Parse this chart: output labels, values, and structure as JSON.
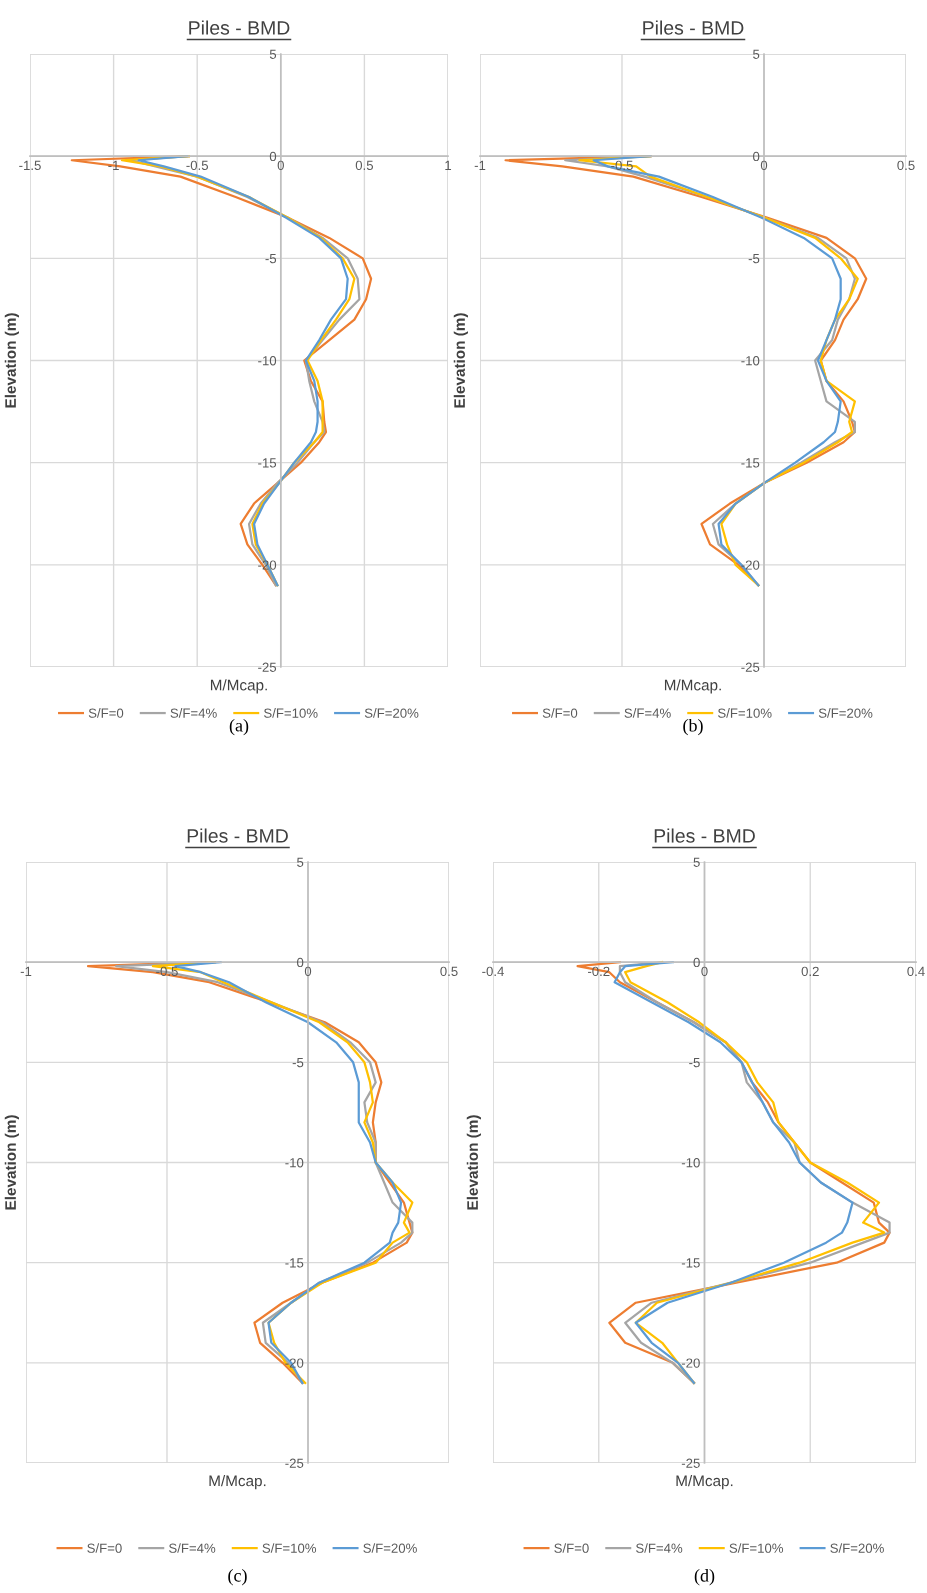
{
  "chart_data": [
    {
      "type": "line",
      "title": "Piles - BMD",
      "xlabel": "M/Mcap.",
      "ylabel": "Elevation (m)",
      "annotations": [
        "(a)"
      ],
      "xlim": [
        -1.5,
        1
      ],
      "xticks": [
        -1.5,
        -1,
        -0.5,
        0,
        0.5,
        1
      ],
      "ylim": [
        -25,
        5
      ],
      "yticks": [
        -25,
        -20,
        -15,
        -10,
        -5,
        0,
        5
      ],
      "grid": true,
      "legend": "bottom",
      "series": [
        {
          "name": "S/F=0",
          "color": "#ed7d31",
          "x": [
            -0.55,
            -1.25,
            -0.96,
            -0.6,
            -0.27,
            0.04,
            0.29,
            0.49,
            0.54,
            0.51,
            0.44,
            0.29,
            0.14,
            0.18,
            0.25,
            0.26,
            0.27,
            0.23,
            0.12,
            -0.02,
            -0.16,
            -0.24,
            -0.2,
            -0.11,
            -0.03
          ],
          "values": [
            0,
            -0.2,
            -0.5,
            -1,
            -2,
            -3,
            -4,
            -5,
            -6,
            -7,
            -8,
            -9,
            -10,
            -11,
            -12,
            -13,
            -13.5,
            -14,
            -15,
            -16,
            -17,
            -18,
            -19,
            -20,
            -21
          ]
        },
        {
          "name": "S/F=4%",
          "color": "#a5a5a5",
          "x": [
            -0.55,
            -0.9,
            -0.75,
            -0.5,
            -0.2,
            0.04,
            0.25,
            0.4,
            0.46,
            0.47,
            0.35,
            0.25,
            0.15,
            0.17,
            0.2,
            0.25,
            0.26,
            0.2,
            0.1,
            -0.02,
            -0.12,
            -0.19,
            -0.17,
            -0.09,
            -0.03
          ],
          "values": [
            0,
            -0.2,
            -0.5,
            -1,
            -2,
            -3,
            -4,
            -5,
            -6,
            -7,
            -8,
            -9,
            -10,
            -11,
            -12,
            -13,
            -13.5,
            -14,
            -15,
            -16,
            -17,
            -18,
            -19,
            -20,
            -21
          ]
        },
        {
          "name": "S/F=10%",
          "color": "#ffc000",
          "x": [
            -0.55,
            -0.95,
            -0.72,
            -0.5,
            -0.19,
            0.04,
            0.24,
            0.37,
            0.44,
            0.41,
            0.33,
            0.24,
            0.16,
            0.22,
            0.25,
            0.25,
            0.25,
            0.2,
            0.08,
            -0.01,
            -0.11,
            -0.17,
            -0.15,
            -0.08,
            -0.02
          ],
          "values": [
            0,
            -0.2,
            -0.5,
            -1,
            -2,
            -3,
            -4,
            -5,
            -6,
            -7,
            -8,
            -9,
            -10,
            -11,
            -12,
            -13,
            -13.5,
            -14,
            -15,
            -16,
            -17,
            -18,
            -19,
            -20,
            -21
          ]
        },
        {
          "name": "S/F=20%",
          "color": "#5b9bd5",
          "x": [
            -0.56,
            -0.85,
            -0.7,
            -0.48,
            -0.19,
            0.03,
            0.23,
            0.36,
            0.4,
            0.39,
            0.3,
            0.23,
            0.15,
            0.2,
            0.22,
            0.22,
            0.21,
            0.18,
            0.08,
            -0.01,
            -0.1,
            -0.16,
            -0.14,
            -0.08,
            -0.02
          ],
          "values": [
            0,
            -0.2,
            -0.5,
            -1,
            -2,
            -3,
            -4,
            -5,
            -6,
            -7,
            -8,
            -9,
            -10,
            -11,
            -12,
            -13,
            -13.5,
            -14,
            -15,
            -16,
            -17,
            -18,
            -19,
            -20,
            -21
          ]
        }
      ]
    },
    {
      "type": "line",
      "title": "Piles - BMD",
      "xlabel": "M/Mcap.",
      "ylabel": "Elevation (m)",
      "annotations": [
        "(b)"
      ],
      "xlim": [
        -1,
        0.5
      ],
      "xticks": [
        -1,
        -0.5,
        0,
        0.5
      ],
      "ylim": [
        -25,
        5
      ],
      "yticks": [
        -25,
        -20,
        -15,
        -10,
        -5,
        0,
        5
      ],
      "grid": true,
      "legend": "bottom",
      "series": [
        {
          "name": "S/F=0",
          "color": "#ed7d31",
          "x": [
            -0.4,
            -0.91,
            -0.71,
            -0.46,
            -0.22,
            0.01,
            0.22,
            0.32,
            0.36,
            0.33,
            0.28,
            0.25,
            0.2,
            0.22,
            0.28,
            0.31,
            0.32,
            0.28,
            0.15,
            0,
            -0.12,
            -0.22,
            -0.19,
            -0.09,
            -0.02
          ],
          "values": [
            0,
            -0.2,
            -0.5,
            -1,
            -2,
            -3,
            -4,
            -5,
            -6,
            -7,
            -8,
            -9,
            -10,
            -11,
            -12,
            -13,
            -13.5,
            -14,
            -15,
            -16,
            -17,
            -18,
            -19,
            -20,
            -21
          ]
        },
        {
          "name": "S/F=4%",
          "color": "#a5a5a5",
          "x": [
            -0.4,
            -0.7,
            -0.55,
            -0.42,
            -0.2,
            0,
            0.19,
            0.29,
            0.32,
            0.3,
            0.26,
            0.24,
            0.18,
            0.2,
            0.22,
            0.32,
            0.32,
            0.25,
            0.13,
            0,
            -0.1,
            -0.18,
            -0.16,
            -0.08,
            -0.02
          ],
          "values": [
            0,
            -0.2,
            -0.5,
            -1,
            -2,
            -3,
            -4,
            -5,
            -6,
            -7,
            -8,
            -9,
            -10,
            -11,
            -12,
            -13,
            -13.5,
            -14,
            -15,
            -16,
            -17,
            -18,
            -19,
            -20,
            -21
          ]
        },
        {
          "name": "S/F=10%",
          "color": "#ffc000",
          "x": [
            -0.4,
            -0.65,
            -0.45,
            -0.4,
            -0.2,
            0,
            0.18,
            0.27,
            0.33,
            0.3,
            0.25,
            0.22,
            0.2,
            0.22,
            0.32,
            0.3,
            0.31,
            0.26,
            0.14,
            0,
            -0.1,
            -0.15,
            -0.13,
            -0.1,
            -0.02
          ],
          "values": [
            0,
            -0.2,
            -0.5,
            -1,
            -2,
            -3,
            -4,
            -5,
            -6,
            -7,
            -8,
            -9,
            -10,
            -11,
            -12,
            -13,
            -13.5,
            -14,
            -15,
            -16,
            -17,
            -18,
            -19,
            -20,
            -21
          ]
        },
        {
          "name": "S/F=20%",
          "color": "#5b9bd5",
          "x": [
            -0.4,
            -0.6,
            -0.55,
            -0.37,
            -0.18,
            -0.01,
            0.14,
            0.24,
            0.27,
            0.27,
            0.25,
            0.22,
            0.19,
            0.22,
            0.27,
            0.26,
            0.25,
            0.21,
            0.11,
            0,
            -0.1,
            -0.16,
            -0.15,
            -0.08,
            -0.02
          ],
          "values": [
            0,
            -0.2,
            -0.5,
            -1,
            -2,
            -3,
            -4,
            -5,
            -6,
            -7,
            -8,
            -9,
            -10,
            -11,
            -12,
            -13,
            -13.5,
            -14,
            -15,
            -16,
            -17,
            -18,
            -19,
            -20,
            -21
          ]
        }
      ]
    },
    {
      "type": "line",
      "title": "Piles - BMD",
      "xlabel": "M/Mcap.",
      "ylabel": "Elevation (m)",
      "annotations": [
        "(c)"
      ],
      "xlim": [
        -1,
        0.5
      ],
      "xticks": [
        -1,
        -0.5,
        0,
        0.5
      ],
      "ylim": [
        -25,
        5
      ],
      "yticks": [
        -25,
        -20,
        -15,
        -10,
        -5,
        0,
        5
      ],
      "grid": true,
      "legend": "bottom",
      "series": [
        {
          "name": "S/F=0",
          "color": "#ed7d31",
          "x": [
            -0.35,
            -0.78,
            -0.55,
            -0.35,
            -0.14,
            0.06,
            0.18,
            0.24,
            0.26,
            0.24,
            0.23,
            0.24,
            0.24,
            0.29,
            0.34,
            0.36,
            0.37,
            0.35,
            0.23,
            0.05,
            -0.09,
            -0.19,
            -0.17,
            -0.09,
            -0.02
          ],
          "values": [
            0,
            -0.2,
            -0.5,
            -1,
            -2,
            -3,
            -4,
            -5,
            -6,
            -7,
            -8,
            -9,
            -10,
            -11,
            -12,
            -13,
            -13.5,
            -14,
            -15,
            -16,
            -17,
            -18,
            -19,
            -20,
            -21
          ]
        },
        {
          "name": "S/F=4%",
          "color": "#a5a5a5",
          "x": [
            -0.33,
            -0.68,
            -0.5,
            -0.32,
            -0.13,
            0.05,
            0.15,
            0.22,
            0.24,
            0.2,
            0.21,
            0.24,
            0.24,
            0.27,
            0.3,
            0.37,
            0.37,
            0.33,
            0.21,
            0.04,
            -0.06,
            -0.16,
            -0.15,
            -0.07,
            -0.02
          ],
          "values": [
            0,
            -0.2,
            -0.5,
            -1,
            -2,
            -3,
            -4,
            -5,
            -6,
            -7,
            -8,
            -9,
            -10,
            -11,
            -12,
            -13,
            -13.5,
            -14,
            -15,
            -16,
            -17,
            -18,
            -19,
            -20,
            -21
          ]
        },
        {
          "name": "S/F=10%",
          "color": "#ffc000",
          "x": [
            -0.33,
            -0.55,
            -0.38,
            -0.3,
            -0.13,
            0.04,
            0.14,
            0.2,
            0.22,
            0.23,
            0.2,
            0.23,
            0.24,
            0.3,
            0.37,
            0.34,
            0.36,
            0.3,
            0.24,
            0.05,
            -0.06,
            -0.14,
            -0.12,
            -0.08,
            -0.01
          ],
          "values": [
            0,
            -0.2,
            -0.5,
            -1,
            -2,
            -3,
            -4,
            -5,
            -6,
            -7,
            -8,
            -9,
            -10,
            -11,
            -12,
            -13,
            -13.5,
            -14,
            -15,
            -16,
            -17,
            -18,
            -19,
            -20,
            -21
          ]
        },
        {
          "name": "S/F=20%",
          "color": "#5b9bd5",
          "x": [
            -0.31,
            -0.47,
            -0.38,
            -0.28,
            -0.15,
            0,
            0.1,
            0.16,
            0.18,
            0.18,
            0.18,
            0.22,
            0.24,
            0.3,
            0.33,
            0.32,
            0.3,
            0.29,
            0.2,
            0.04,
            -0.06,
            -0.14,
            -0.13,
            -0.06,
            -0.02
          ],
          "values": [
            0,
            -0.2,
            -0.5,
            -1,
            -2,
            -3,
            -4,
            -5,
            -6,
            -7,
            -8,
            -9,
            -10,
            -11,
            -12,
            -13,
            -13.5,
            -14,
            -15,
            -16,
            -17,
            -18,
            -19,
            -20,
            -21
          ]
        }
      ]
    },
    {
      "type": "line",
      "title": "Piles - BMD",
      "xlabel": "M/Mcap.",
      "ylabel": "Elevation (m)",
      "annotations": [
        "(d)"
      ],
      "xlim": [
        -0.4,
        0.4
      ],
      "xticks": [
        -0.4,
        -0.2,
        0,
        0.2,
        0.4
      ],
      "ylim": [
        -25,
        5
      ],
      "yticks": [
        -25,
        -20,
        -15,
        -10,
        -5,
        0,
        5
      ],
      "grid": true,
      "legend": "bottom",
      "series": [
        {
          "name": "S/F=0",
          "color": "#ed7d31",
          "x": [
            -0.16,
            -0.24,
            -0.18,
            -0.16,
            -0.09,
            -0.02,
            0.04,
            0.07,
            0.09,
            0.12,
            0.14,
            0.17,
            0.2,
            0.26,
            0.32,
            0.33,
            0.35,
            0.34,
            0.25,
            0.06,
            -0.13,
            -0.18,
            -0.15,
            -0.06,
            -0.02
          ],
          "values": [
            0,
            -0.2,
            -0.5,
            -1,
            -2,
            -3,
            -4,
            -5,
            -6,
            -7,
            -8,
            -9,
            -10,
            -11,
            -12,
            -13,
            -13.5,
            -14,
            -15,
            -16,
            -17,
            -18,
            -19,
            -20,
            -21
          ]
        },
        {
          "name": "S/F=4%",
          "color": "#a5a5a5",
          "x": [
            -0.08,
            -0.16,
            -0.16,
            -0.15,
            -0.09,
            -0.02,
            0.04,
            0.07,
            0.08,
            0.11,
            0.13,
            0.17,
            0.18,
            0.22,
            0.28,
            0.35,
            0.35,
            0.3,
            0.2,
            0.05,
            -0.1,
            -0.15,
            -0.12,
            -0.06,
            -0.02
          ],
          "values": [
            0,
            -0.2,
            -0.5,
            -1,
            -2,
            -3,
            -4,
            -5,
            -6,
            -7,
            -8,
            -9,
            -10,
            -11,
            -12,
            -13,
            -13.5,
            -14,
            -15,
            -16,
            -17,
            -18,
            -19,
            -20,
            -21
          ]
        },
        {
          "name": "S/F=10%",
          "color": "#ffc000",
          "x": [
            -0.08,
            -0.11,
            -0.15,
            -0.14,
            -0.07,
            -0.01,
            0.04,
            0.08,
            0.1,
            0.13,
            0.14,
            0.17,
            0.2,
            0.27,
            0.33,
            0.3,
            0.34,
            0.28,
            0.18,
            0.05,
            -0.09,
            -0.13,
            -0.08,
            -0.05,
            -0.02
          ],
          "values": [
            0,
            -0.2,
            -0.5,
            -1,
            -2,
            -3,
            -4,
            -5,
            -6,
            -7,
            -8,
            -9,
            -10,
            -11,
            -12,
            -13,
            -13.5,
            -14,
            -15,
            -16,
            -17,
            -18,
            -19,
            -20,
            -21
          ]
        },
        {
          "name": "S/F=20%",
          "color": "#5b9bd5",
          "x": [
            -0.06,
            -0.15,
            -0.16,
            -0.17,
            -0.1,
            -0.03,
            0.03,
            0.07,
            0.09,
            0.11,
            0.13,
            0.16,
            0.18,
            0.22,
            0.28,
            0.27,
            0.26,
            0.23,
            0.15,
            0.05,
            -0.07,
            -0.13,
            -0.1,
            -0.05,
            -0.02
          ],
          "values": [
            0,
            -0.2,
            -0.5,
            -1,
            -2,
            -3,
            -4,
            -5,
            -6,
            -7,
            -8,
            -9,
            -10,
            -11,
            -12,
            -13,
            -13.5,
            -14,
            -15,
            -16,
            -17,
            -18,
            -19,
            -20,
            -21
          ]
        }
      ]
    }
  ]
}
